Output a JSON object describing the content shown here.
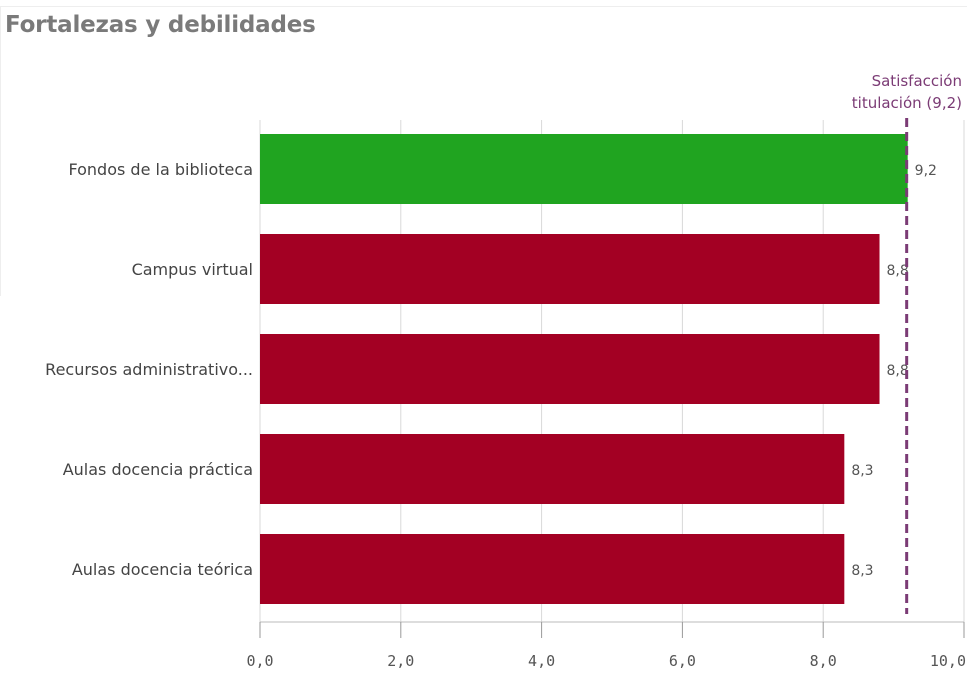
{
  "header": {
    "title": "Fortalezas y debilidades"
  },
  "chart_data": {
    "type": "bar",
    "orientation": "horizontal",
    "title": "Fortalezas y debilidades",
    "xlabel": "",
    "ylabel": "",
    "xlim": [
      0,
      10
    ],
    "x_ticks": [
      0,
      2,
      4,
      6,
      8,
      10
    ],
    "x_tick_labels": [
      "0,0",
      "2,0",
      "4,0",
      "6,0",
      "8,0",
      "10,0"
    ],
    "categories": [
      "Fondos de la biblioteca",
      "Campus virtual",
      "Recursos administrativo...",
      "Aulas docencia práctica",
      "Aulas docencia teórica"
    ],
    "values": [
      9.2,
      8.8,
      8.8,
      8.3,
      8.3
    ],
    "value_labels": [
      "9,2",
      "8,8",
      "8,8",
      "8,3",
      "8,3"
    ],
    "bar_colors": [
      "#20a420",
      "#a30023",
      "#a30023",
      "#a30023",
      "#a30023"
    ],
    "grid": true,
    "reference_line": {
      "value": 9.2,
      "label_lines": [
        "Satisfacción",
        "titulación (9,2)"
      ],
      "color": "#7b3b75",
      "style": "dashed"
    }
  }
}
